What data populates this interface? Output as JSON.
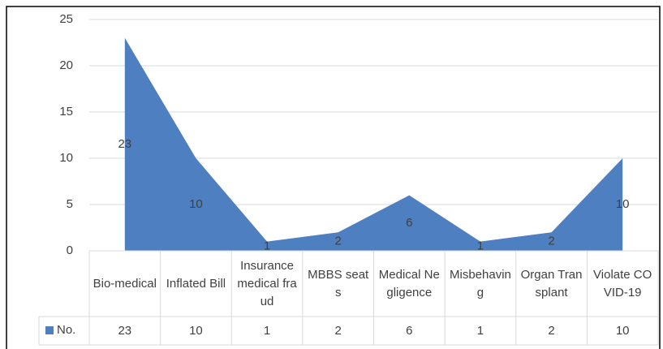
{
  "chart_data": {
    "type": "area",
    "categories": [
      "Bio-medical",
      "Inflated Bill",
      "Insurance medical fraud",
      "MBBS seats",
      "Medical Negligence",
      "Misbehaving",
      "Organ Transplant",
      "Violate COVID-19"
    ],
    "series": [
      {
        "name": "No.",
        "color": "#4e7fc0",
        "values": [
          23,
          10,
          1,
          2,
          6,
          1,
          2,
          10
        ]
      }
    ],
    "ylim": [
      0,
      25
    ],
    "yticks": [
      0,
      5,
      10,
      15,
      20,
      25
    ],
    "grid": true,
    "data_table": true
  }
}
